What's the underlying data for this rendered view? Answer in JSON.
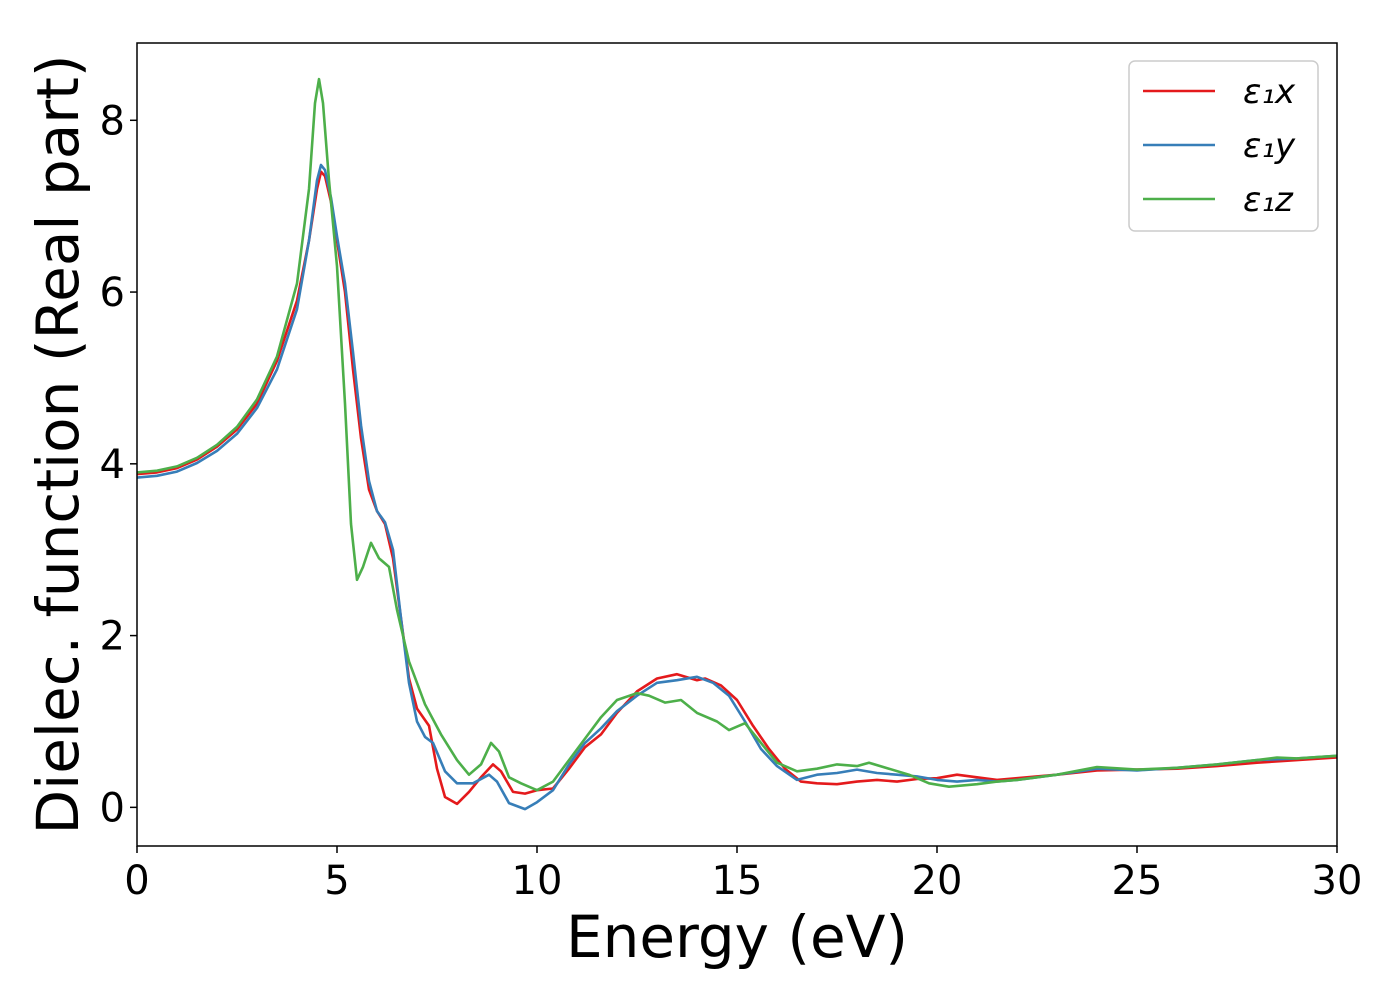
{
  "chart_data": {
    "type": "line",
    "title": "",
    "xlabel": "Energy (eV)",
    "ylabel": "Dielec. function (Real part)",
    "xlim": [
      0,
      30
    ],
    "ylim": [
      -0.45,
      8.9
    ],
    "xticks": [
      0,
      5,
      10,
      15,
      20,
      25,
      30
    ],
    "xtick_labels": [
      "0",
      "5",
      "10",
      "15",
      "20",
      "25",
      "30"
    ],
    "yticks": [
      0,
      2,
      4,
      6,
      8
    ],
    "ytick_labels": [
      "0",
      "2",
      "4",
      "6",
      "8"
    ],
    "grid": false,
    "legend_position": "top-right",
    "series": [
      {
        "name": "ε₁x",
        "color": "#e41a1c",
        "points": [
          [
            0,
            3.88
          ],
          [
            0.5,
            3.9
          ],
          [
            1,
            3.95
          ],
          [
            1.5,
            4.05
          ],
          [
            2,
            4.2
          ],
          [
            2.5,
            4.4
          ],
          [
            3,
            4.7
          ],
          [
            3.5,
            5.2
          ],
          [
            4,
            5.9
          ],
          [
            4.3,
            6.6
          ],
          [
            4.5,
            7.2
          ],
          [
            4.6,
            7.4
          ],
          [
            4.7,
            7.35
          ],
          [
            4.85,
            7.05
          ],
          [
            5,
            6.6
          ],
          [
            5.2,
            6.0
          ],
          [
            5.4,
            5.1
          ],
          [
            5.6,
            4.3
          ],
          [
            5.8,
            3.7
          ],
          [
            6.0,
            3.45
          ],
          [
            6.2,
            3.3
          ],
          [
            6.4,
            2.9
          ],
          [
            6.6,
            2.2
          ],
          [
            6.8,
            1.5
          ],
          [
            7.0,
            1.15
          ],
          [
            7.3,
            0.95
          ],
          [
            7.5,
            0.45
          ],
          [
            7.7,
            0.12
          ],
          [
            8.0,
            0.04
          ],
          [
            8.3,
            0.18
          ],
          [
            8.6,
            0.35
          ],
          [
            8.9,
            0.5
          ],
          [
            9.1,
            0.42
          ],
          [
            9.4,
            0.18
          ],
          [
            9.7,
            0.16
          ],
          [
            10,
            0.2
          ],
          [
            10.4,
            0.22
          ],
          [
            10.8,
            0.45
          ],
          [
            11.2,
            0.7
          ],
          [
            11.6,
            0.85
          ],
          [
            12,
            1.1
          ],
          [
            12.5,
            1.35
          ],
          [
            13,
            1.5
          ],
          [
            13.5,
            1.55
          ],
          [
            14,
            1.48
          ],
          [
            14.2,
            1.5
          ],
          [
            14.6,
            1.42
          ],
          [
            15,
            1.25
          ],
          [
            15.4,
            0.95
          ],
          [
            15.8,
            0.68
          ],
          [
            16.2,
            0.45
          ],
          [
            16.6,
            0.3
          ],
          [
            17,
            0.28
          ],
          [
            17.5,
            0.27
          ],
          [
            18,
            0.3
          ],
          [
            18.5,
            0.32
          ],
          [
            19,
            0.3
          ],
          [
            19.5,
            0.33
          ],
          [
            20,
            0.34
          ],
          [
            20.5,
            0.38
          ],
          [
            21,
            0.35
          ],
          [
            21.5,
            0.32
          ],
          [
            22,
            0.34
          ],
          [
            22.5,
            0.36
          ],
          [
            23,
            0.38
          ],
          [
            24,
            0.43
          ],
          [
            25,
            0.44
          ],
          [
            26,
            0.45
          ],
          [
            27,
            0.48
          ],
          [
            28,
            0.52
          ],
          [
            29,
            0.55
          ],
          [
            30,
            0.58
          ]
        ]
      },
      {
        "name": "ε₁y",
        "color": "#377eb8",
        "points": [
          [
            0,
            3.84
          ],
          [
            0.5,
            3.86
          ],
          [
            1,
            3.91
          ],
          [
            1.5,
            4.01
          ],
          [
            2,
            4.15
          ],
          [
            2.5,
            4.35
          ],
          [
            3,
            4.65
          ],
          [
            3.5,
            5.1
          ],
          [
            4,
            5.8
          ],
          [
            4.3,
            6.6
          ],
          [
            4.5,
            7.3
          ],
          [
            4.6,
            7.48
          ],
          [
            4.7,
            7.42
          ],
          [
            4.85,
            7.1
          ],
          [
            5,
            6.65
          ],
          [
            5.2,
            6.1
          ],
          [
            5.4,
            5.3
          ],
          [
            5.6,
            4.45
          ],
          [
            5.8,
            3.8
          ],
          [
            6.0,
            3.45
          ],
          [
            6.2,
            3.32
          ],
          [
            6.4,
            3.0
          ],
          [
            6.6,
            2.2
          ],
          [
            6.8,
            1.45
          ],
          [
            7.0,
            1.0
          ],
          [
            7.2,
            0.82
          ],
          [
            7.4,
            0.75
          ],
          [
            7.7,
            0.42
          ],
          [
            8.0,
            0.28
          ],
          [
            8.4,
            0.28
          ],
          [
            8.8,
            0.38
          ],
          [
            9.0,
            0.3
          ],
          [
            9.3,
            0.05
          ],
          [
            9.7,
            -0.02
          ],
          [
            10,
            0.06
          ],
          [
            10.4,
            0.2
          ],
          [
            10.8,
            0.5
          ],
          [
            11.2,
            0.75
          ],
          [
            11.6,
            0.92
          ],
          [
            12,
            1.12
          ],
          [
            12.5,
            1.3
          ],
          [
            13,
            1.45
          ],
          [
            13.5,
            1.48
          ],
          [
            14,
            1.52
          ],
          [
            14.4,
            1.45
          ],
          [
            14.8,
            1.3
          ],
          [
            15.2,
            1.0
          ],
          [
            15.6,
            0.68
          ],
          [
            16,
            0.48
          ],
          [
            16.5,
            0.32
          ],
          [
            17,
            0.38
          ],
          [
            17.5,
            0.4
          ],
          [
            18,
            0.44
          ],
          [
            18.5,
            0.4
          ],
          [
            19,
            0.38
          ],
          [
            19.5,
            0.36
          ],
          [
            20,
            0.32
          ],
          [
            20.5,
            0.3
          ],
          [
            21,
            0.32
          ],
          [
            21.5,
            0.3
          ],
          [
            22,
            0.32
          ],
          [
            22.5,
            0.35
          ],
          [
            23,
            0.38
          ],
          [
            24,
            0.45
          ],
          [
            25,
            0.43
          ],
          [
            26,
            0.46
          ],
          [
            27,
            0.5
          ],
          [
            28,
            0.55
          ],
          [
            29,
            0.57
          ],
          [
            30,
            0.6
          ]
        ]
      },
      {
        "name": "ε₁z",
        "color": "#4daf4a",
        "points": [
          [
            0,
            3.9
          ],
          [
            0.5,
            3.92
          ],
          [
            1,
            3.97
          ],
          [
            1.5,
            4.07
          ],
          [
            2,
            4.22
          ],
          [
            2.5,
            4.43
          ],
          [
            3,
            4.75
          ],
          [
            3.5,
            5.25
          ],
          [
            4,
            6.1
          ],
          [
            4.3,
            7.2
          ],
          [
            4.45,
            8.2
          ],
          [
            4.55,
            8.48
          ],
          [
            4.65,
            8.2
          ],
          [
            4.8,
            7.3
          ],
          [
            5.0,
            6.3
          ],
          [
            5.2,
            4.7
          ],
          [
            5.35,
            3.3
          ],
          [
            5.5,
            2.65
          ],
          [
            5.65,
            2.8
          ],
          [
            5.85,
            3.08
          ],
          [
            6.05,
            2.9
          ],
          [
            6.3,
            2.8
          ],
          [
            6.5,
            2.3
          ],
          [
            6.8,
            1.7
          ],
          [
            7.2,
            1.2
          ],
          [
            7.6,
            0.85
          ],
          [
            8.0,
            0.55
          ],
          [
            8.3,
            0.38
          ],
          [
            8.6,
            0.5
          ],
          [
            8.85,
            0.75
          ],
          [
            9.05,
            0.65
          ],
          [
            9.3,
            0.35
          ],
          [
            9.6,
            0.28
          ],
          [
            10,
            0.2
          ],
          [
            10.4,
            0.3
          ],
          [
            10.8,
            0.55
          ],
          [
            11.2,
            0.8
          ],
          [
            11.6,
            1.05
          ],
          [
            12,
            1.25
          ],
          [
            12.5,
            1.33
          ],
          [
            12.8,
            1.3
          ],
          [
            13.2,
            1.22
          ],
          [
            13.6,
            1.25
          ],
          [
            14,
            1.1
          ],
          [
            14.5,
            1.0
          ],
          [
            14.8,
            0.9
          ],
          [
            15.2,
            0.98
          ],
          [
            15.6,
            0.75
          ],
          [
            16,
            0.52
          ],
          [
            16.5,
            0.42
          ],
          [
            17,
            0.45
          ],
          [
            17.5,
            0.5
          ],
          [
            18,
            0.48
          ],
          [
            18.3,
            0.52
          ],
          [
            18.8,
            0.45
          ],
          [
            19.3,
            0.38
          ],
          [
            19.8,
            0.28
          ],
          [
            20.3,
            0.24
          ],
          [
            21,
            0.27
          ],
          [
            21.5,
            0.3
          ],
          [
            22,
            0.32
          ],
          [
            22.5,
            0.35
          ],
          [
            23,
            0.38
          ],
          [
            24,
            0.47
          ],
          [
            25,
            0.44
          ],
          [
            26,
            0.46
          ],
          [
            27,
            0.5
          ],
          [
            28,
            0.55
          ],
          [
            28.5,
            0.58
          ],
          [
            29,
            0.57
          ],
          [
            30,
            0.6
          ]
        ]
      }
    ]
  }
}
